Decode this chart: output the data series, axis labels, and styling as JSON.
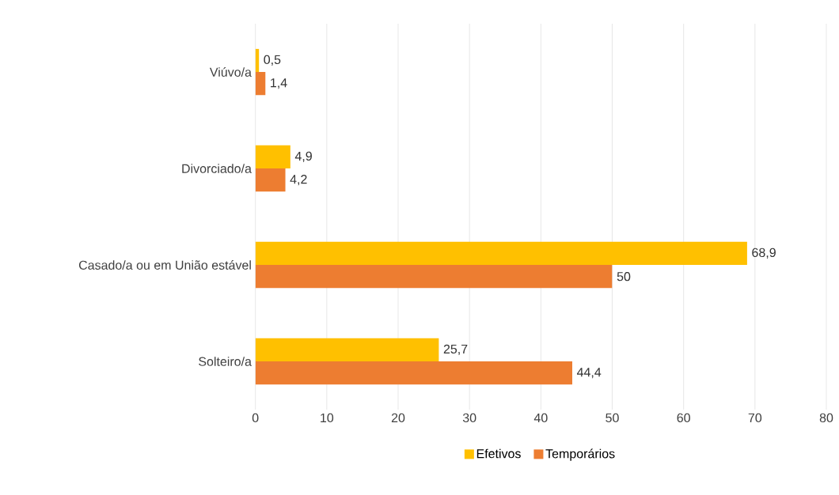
{
  "chart_data": {
    "type": "bar",
    "orientation": "horizontal",
    "categories": [
      "Viúvo/a",
      "Divorciado/a",
      "Casado/a ou em União estável",
      "Solteiro/a"
    ],
    "series": [
      {
        "name": "Efetivos",
        "color": "#ffc000",
        "values": [
          0.5,
          4.9,
          68.9,
          25.7
        ],
        "value_labels": [
          "0,5",
          "4,9",
          "68,9",
          "25,7"
        ]
      },
      {
        "name": "Temporários",
        "color": "#ed7d31",
        "values": [
          1.4,
          4.2,
          50,
          44.4
        ],
        "value_labels": [
          "1,4",
          "4,2",
          "50",
          "44,4"
        ]
      }
    ],
    "xlim": [
      0,
      80
    ],
    "xticks": [
      0,
      10,
      20,
      30,
      40,
      50,
      60,
      70,
      80
    ],
    "grid": "x",
    "legend": "bottom"
  }
}
